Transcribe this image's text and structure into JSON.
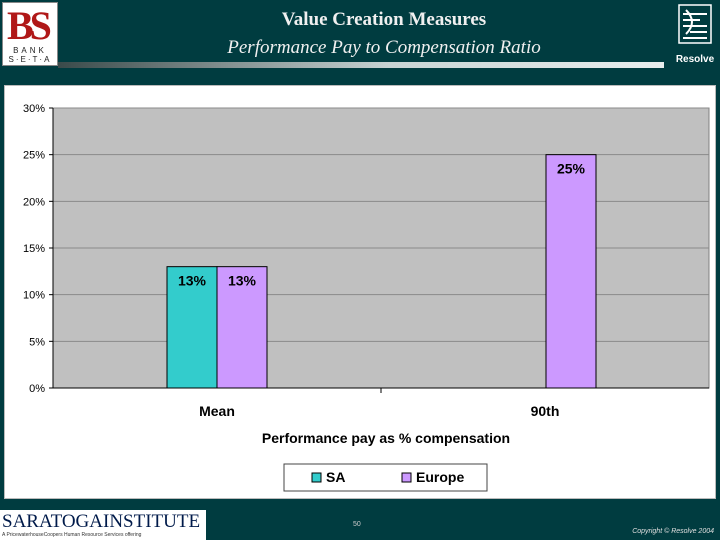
{
  "header": {
    "logo_left": {
      "mark": "BS",
      "line1": "BANK",
      "line2": "S·E·T·A"
    },
    "title": "Value Creation Measures",
    "subtitle": "Performance Pay to Compensation Ratio",
    "logo_right_text": "Resolve"
  },
  "footer": {
    "logo": "SARATOGAINSTITUTE",
    "tagline": "A PricewaterhouseCoopers Human Resource Services offering",
    "page_number": "50",
    "copyright": "Copyright © Resolve 2004"
  },
  "chart_data": {
    "type": "bar",
    "categories": [
      "Mean",
      "90th"
    ],
    "series": [
      {
        "name": "SA",
        "values": [
          13,
          null
        ],
        "labels": [
          "13%",
          ""
        ],
        "color": "#33cccc"
      },
      {
        "name": "Europe",
        "values": [
          13,
          25
        ],
        "labels": [
          "13%",
          "25%"
        ],
        "color": "#cc99ff"
      }
    ],
    "xlabel": "Performance pay as % compensation",
    "ylabel": "",
    "ylim": [
      0,
      30
    ],
    "yticks": [
      "0%",
      "5%",
      "10%",
      "15%",
      "20%",
      "25%",
      "30%"
    ],
    "grid": true,
    "legend_position": "bottom",
    "plot_background": "#c0c0c0"
  }
}
